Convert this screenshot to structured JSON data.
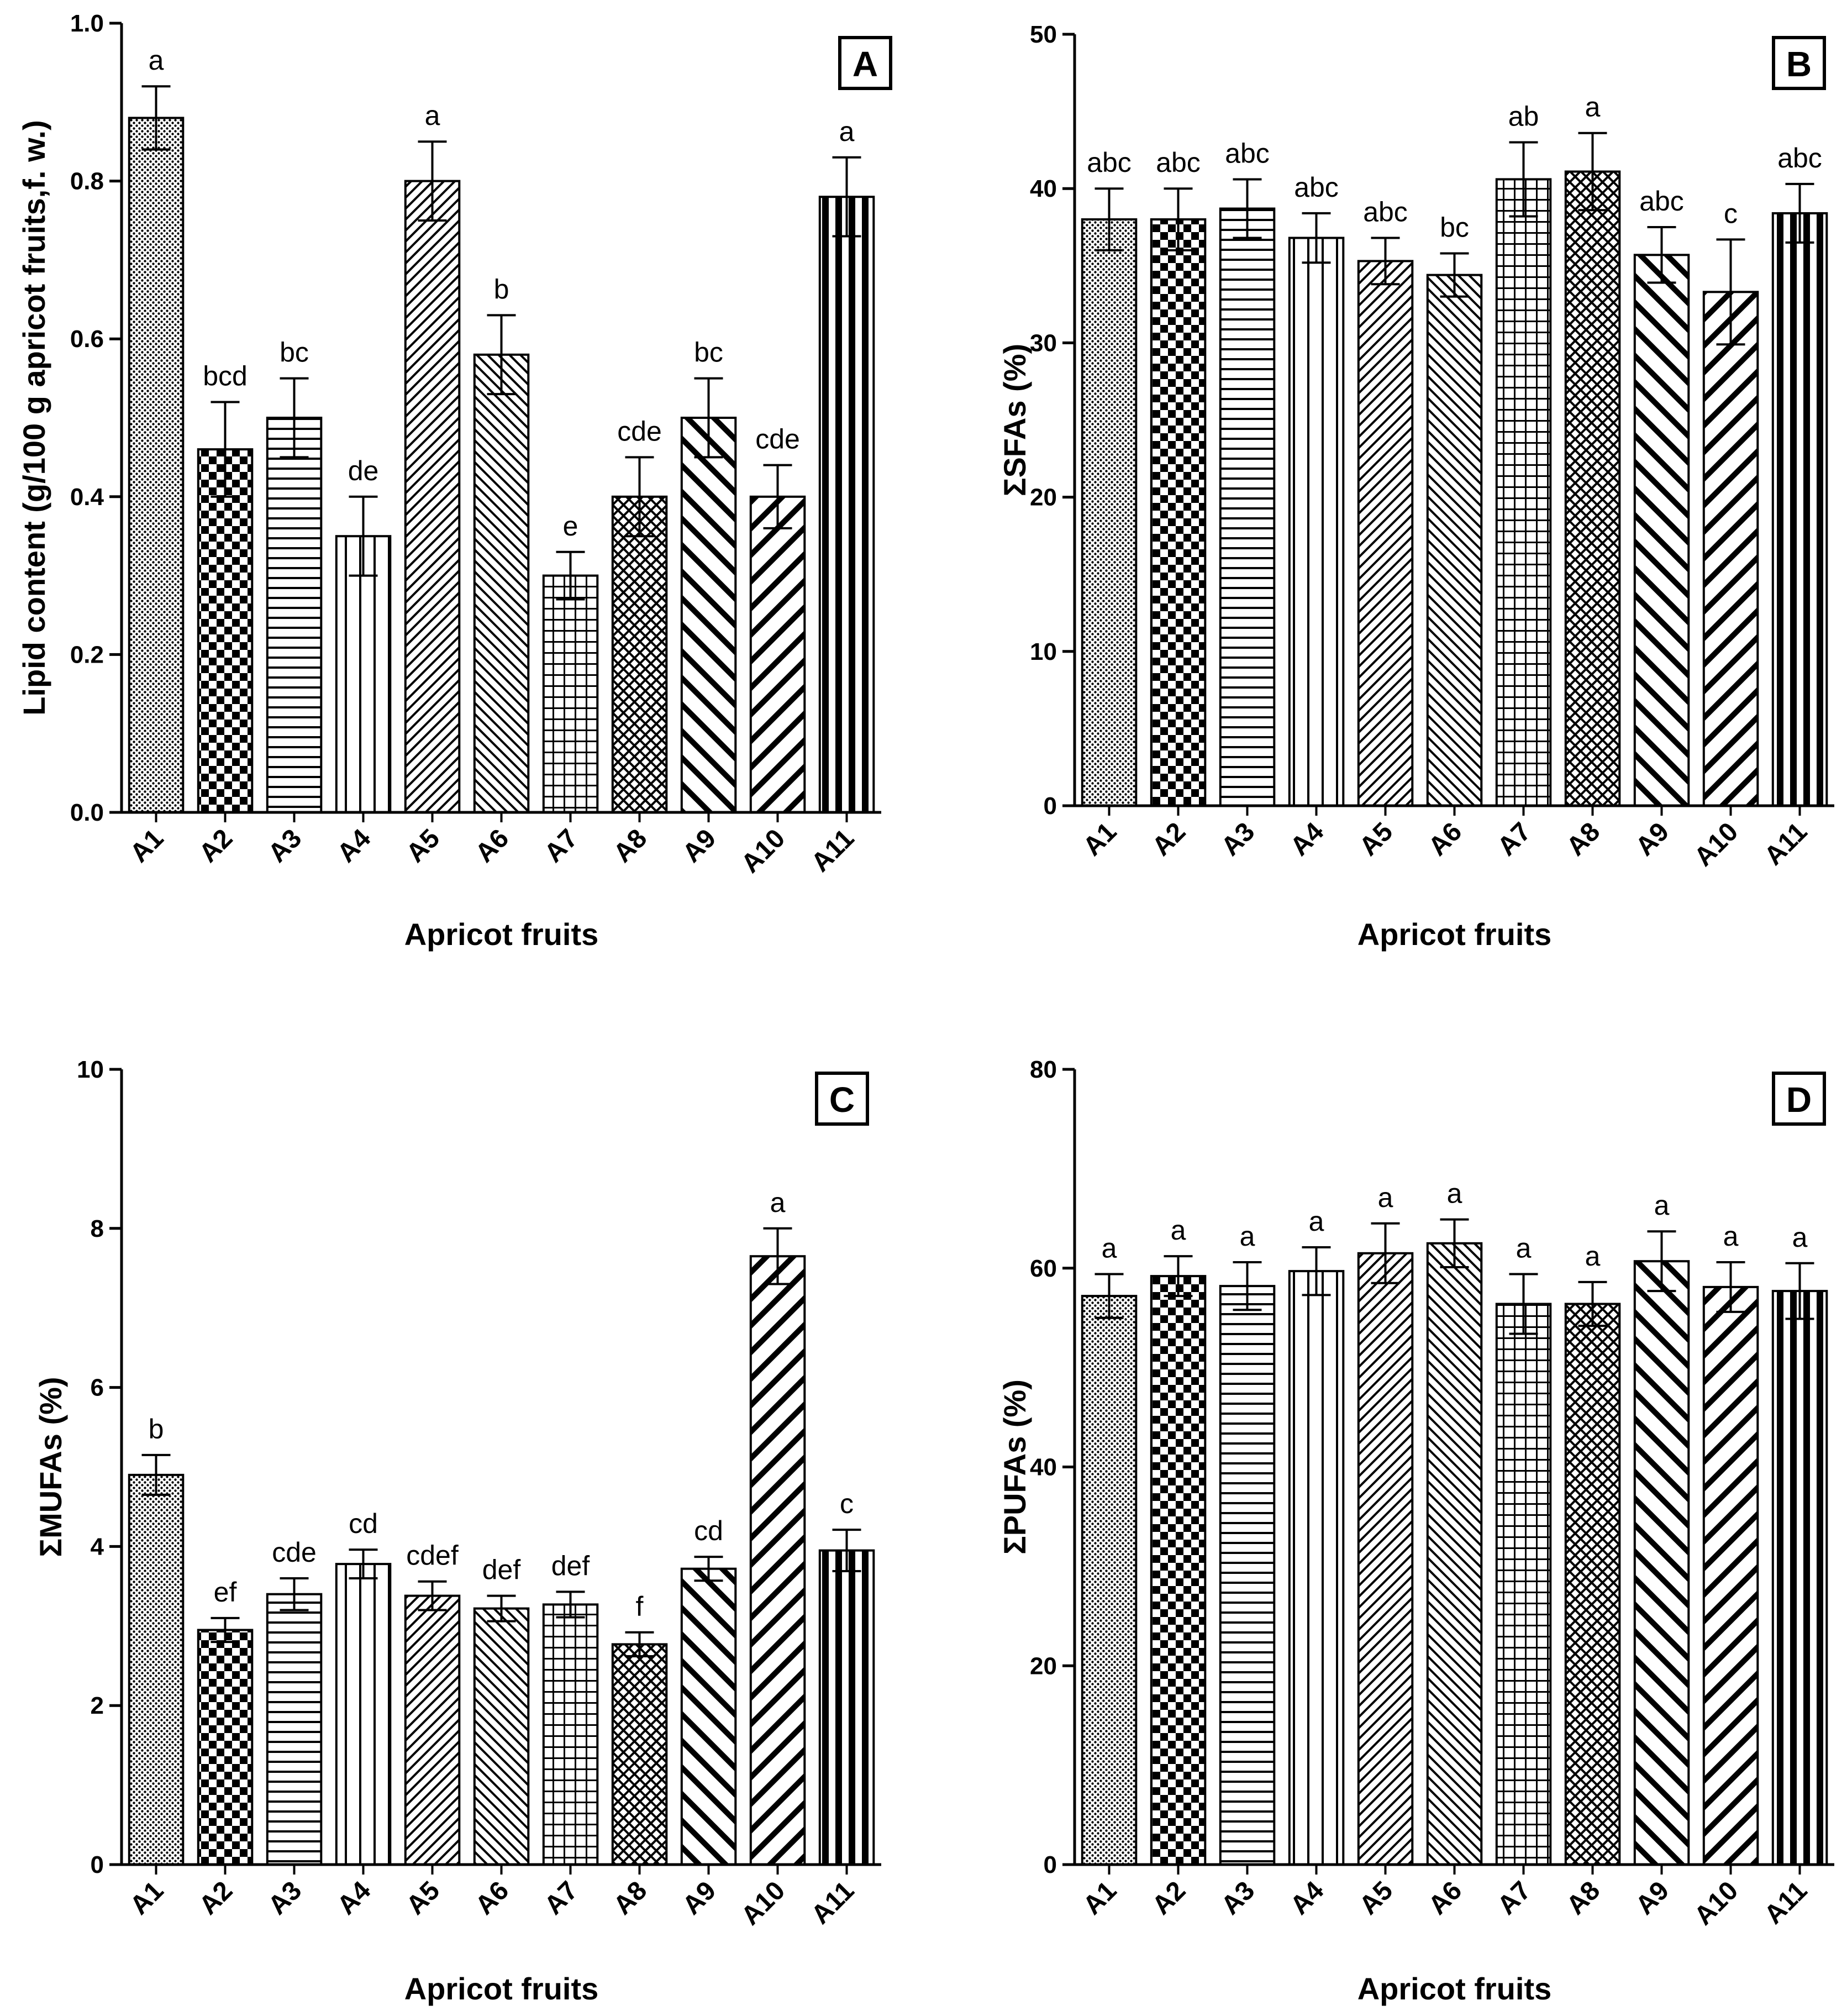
{
  "figure": {
    "colors": {
      "ink": "#000000",
      "background": "#ffffff"
    }
  },
  "chart_data": [
    {
      "panel": "A",
      "type": "bar",
      "xlabel": "Apricot fruits",
      "ylabel": "Lipid content (g/100 g apricot fruits,f. w.)",
      "ylim": [
        0,
        1.0
      ],
      "yticks": [
        "0.0",
        "0.2",
        "0.4",
        "0.6",
        "0.8",
        "1.0"
      ],
      "categories": [
        "A1",
        "A2",
        "A3",
        "A4",
        "A5",
        "A6",
        "A7",
        "A8",
        "A9",
        "A10",
        "A11"
      ],
      "values": [
        0.88,
        0.46,
        0.5,
        0.35,
        0.8,
        0.58,
        0.3,
        0.4,
        0.5,
        0.4,
        0.78
      ],
      "errors": [
        0.04,
        0.06,
        0.05,
        0.05,
        0.05,
        0.05,
        0.03,
        0.05,
        0.05,
        0.04,
        0.05
      ],
      "labels": [
        "a",
        "bcd",
        "bc",
        "de",
        "a",
        "b",
        "e",
        "cde",
        "bc",
        "cde",
        "a"
      ],
      "patterns": [
        "dots",
        "checker",
        "hlines",
        "vlines",
        "diag-fine",
        "diag-back-fine",
        "grid",
        "crosshatch",
        "diag-back-wide",
        "diag-wide",
        "vbars"
      ]
    },
    {
      "panel": "B",
      "type": "bar",
      "xlabel": "Apricot fruits",
      "ylabel": "ΣSFAs (%)",
      "ylim": [
        0,
        50
      ],
      "yticks": [
        "0",
        "10",
        "20",
        "30",
        "40",
        "50"
      ],
      "categories": [
        "A1",
        "A2",
        "A3",
        "A4",
        "A5",
        "A6",
        "A7",
        "A8",
        "A9",
        "A10",
        "A11"
      ],
      "values": [
        38.0,
        38.0,
        38.7,
        36.8,
        35.3,
        34.4,
        40.6,
        41.1,
        35.7,
        33.3,
        38.4
      ],
      "errors": [
        2.0,
        2.0,
        1.9,
        1.6,
        1.5,
        1.4,
        2.4,
        2.5,
        1.8,
        3.4,
        1.9
      ],
      "labels": [
        "abc",
        "abc",
        "abc",
        "abc",
        "abc",
        "bc",
        "ab",
        "a",
        "abc",
        "c",
        "abc"
      ],
      "patterns": [
        "dots",
        "checker",
        "hlines",
        "vlines",
        "diag-fine",
        "diag-back-fine",
        "grid",
        "crosshatch",
        "diag-back-wide",
        "diag-wide",
        "vbars"
      ]
    },
    {
      "panel": "C",
      "type": "bar",
      "xlabel": "Apricot fruits",
      "ylabel": "ΣMUFAs (%)",
      "ylim": [
        0,
        10
      ],
      "yticks": [
        "0",
        "2",
        "4",
        "6",
        "8",
        "10"
      ],
      "categories": [
        "A1",
        "A2",
        "A3",
        "A4",
        "A5",
        "A6",
        "A7",
        "A8",
        "A9",
        "A10",
        "A11"
      ],
      "values": [
        4.9,
        2.95,
        3.4,
        3.78,
        3.38,
        3.22,
        3.27,
        2.77,
        3.72,
        7.65,
        3.95
      ],
      "errors": [
        0.25,
        0.15,
        0.2,
        0.18,
        0.18,
        0.16,
        0.16,
        0.15,
        0.15,
        0.35,
        0.26
      ],
      "labels": [
        "b",
        "ef",
        "cde",
        "cd",
        "cdef",
        "def",
        "def",
        "f",
        "cd",
        "a",
        "c"
      ],
      "patterns": [
        "dots",
        "checker",
        "hlines",
        "vlines",
        "diag-fine",
        "diag-back-fine",
        "grid",
        "crosshatch",
        "diag-back-wide",
        "diag-wide",
        "vbars"
      ]
    },
    {
      "panel": "D",
      "type": "bar",
      "xlabel": "Apricot fruits",
      "ylabel": "ΣPUFAs (%)",
      "ylim": [
        0,
        80
      ],
      "yticks": [
        "0",
        "20",
        "40",
        "60",
        "80"
      ],
      "categories": [
        "A1",
        "A2",
        "A3",
        "A4",
        "A5",
        "A6",
        "A7",
        "A8",
        "A9",
        "A10",
        "A11"
      ],
      "values": [
        57.2,
        59.2,
        58.2,
        59.7,
        61.5,
        62.5,
        56.4,
        56.4,
        60.7,
        58.1,
        57.7
      ],
      "errors": [
        2.2,
        2.0,
        2.4,
        2.4,
        3.0,
        2.4,
        3.0,
        2.2,
        3.0,
        2.5,
        2.8
      ],
      "labels": [
        "a",
        "a",
        "a",
        "a",
        "a",
        "a",
        "a",
        "a",
        "a",
        "a",
        "a"
      ],
      "patterns": [
        "dots",
        "checker",
        "hlines",
        "vlines",
        "diag-fine",
        "diag-back-fine",
        "grid",
        "crosshatch",
        "diag-back-wide",
        "diag-wide",
        "vbars"
      ]
    }
  ]
}
